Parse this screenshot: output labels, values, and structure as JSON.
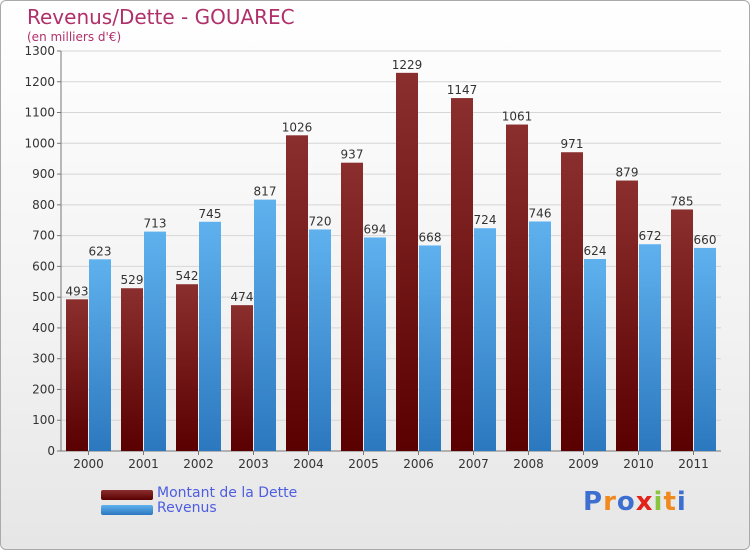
{
  "title": "Revenus/Dette - GOUAREC",
  "subtitle": "(en milliers d'€)",
  "logo": {
    "text": "Proxiti"
  },
  "colors": {
    "title": "#b0306a",
    "dette_top": "#8b2e2e",
    "dette_bottom": "#5a0000",
    "revenus_top": "#5fb1ee",
    "revenus_bottom": "#2c78bf",
    "legend_text": "#4d5de0"
  },
  "legend": [
    {
      "label": "Montant de la Dette",
      "series": "dette"
    },
    {
      "label": "Revenus",
      "series": "revenus"
    }
  ],
  "chart_data": {
    "type": "bar",
    "title": "Revenus/Dette - GOUAREC",
    "ylabel": "(en milliers d'€)",
    "xlabel": "",
    "categories": [
      "2000",
      "2001",
      "2002",
      "2003",
      "2004",
      "2005",
      "2006",
      "2007",
      "2008",
      "2009",
      "2010",
      "2011"
    ],
    "series": [
      {
        "name": "Montant de la Dette",
        "key": "dette",
        "values": [
          493,
          529,
          542,
          474,
          1026,
          937,
          1229,
          1147,
          1061,
          971,
          879,
          785
        ]
      },
      {
        "name": "Revenus",
        "key": "revenus",
        "values": [
          623,
          713,
          745,
          817,
          720,
          694,
          668,
          724,
          746,
          624,
          672,
          660
        ]
      }
    ],
    "ylim": [
      0,
      1300
    ],
    "yticks": [
      0,
      100,
      200,
      300,
      400,
      500,
      600,
      700,
      800,
      900,
      1000,
      1100,
      1200,
      1300
    ],
    "grid": true,
    "legend_position": "bottom-left"
  }
}
